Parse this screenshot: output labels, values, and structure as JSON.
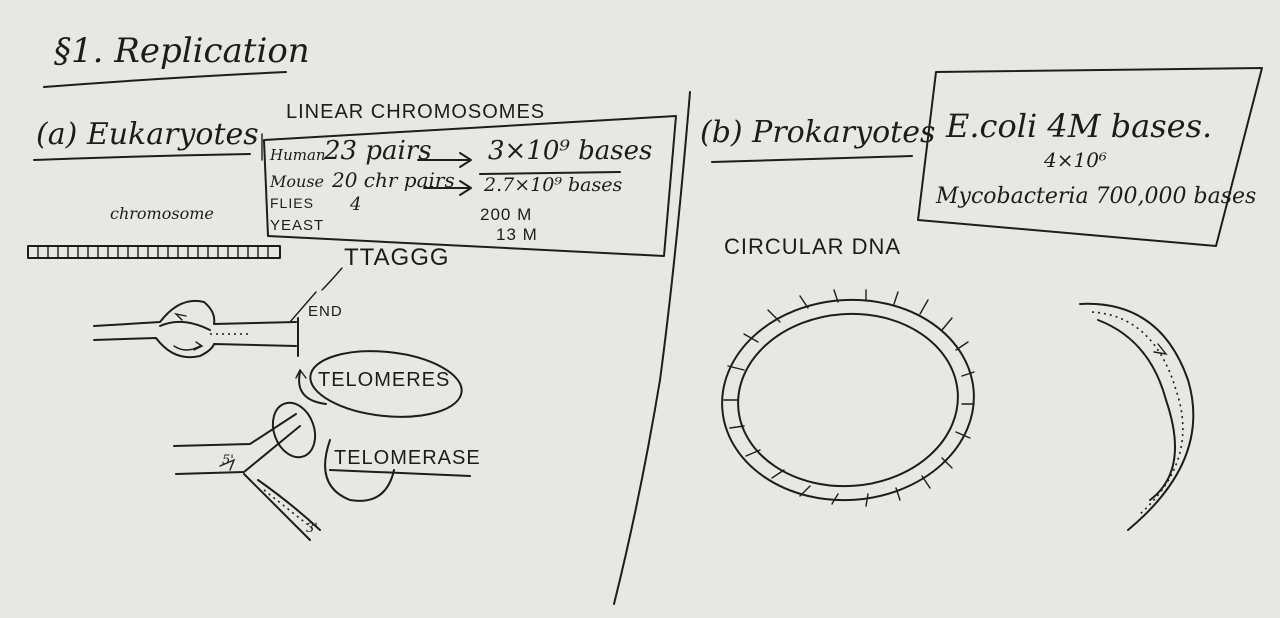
{
  "section": {
    "title": "§1. Replication"
  },
  "eukaryotes": {
    "heading": "(a) Eukaryotes",
    "box_title": "LINEAR CHROMOSOMES",
    "rows": [
      {
        "organism": "Human",
        "count": "23 pairs",
        "bases": "3×10⁹ bases"
      },
      {
        "organism": "Mouse",
        "count": "20 chr pairs",
        "bases": "2.7×10⁹ bases"
      },
      {
        "organism": "FLIES",
        "count": "4",
        "bases": "200 M"
      },
      {
        "organism": "YEAST",
        "count": "",
        "bases": "13 M"
      }
    ],
    "chromosome_label": "chromosome",
    "repeat_sequence": "TTAGGG",
    "end_label": "END",
    "telomeres_label": "TELOMERES",
    "telomerase_label": "TELOMERASE",
    "prime_labels": [
      "5'",
      "3'"
    ]
  },
  "prokaryotes": {
    "heading": "(b) Prokaryotes",
    "ecoli": "E.coli 4M bases.",
    "ecoli_sci": "4×10⁶",
    "myco": "Mycobacteria 700,000 bases",
    "circular_label": "CIRCULAR DNA"
  }
}
